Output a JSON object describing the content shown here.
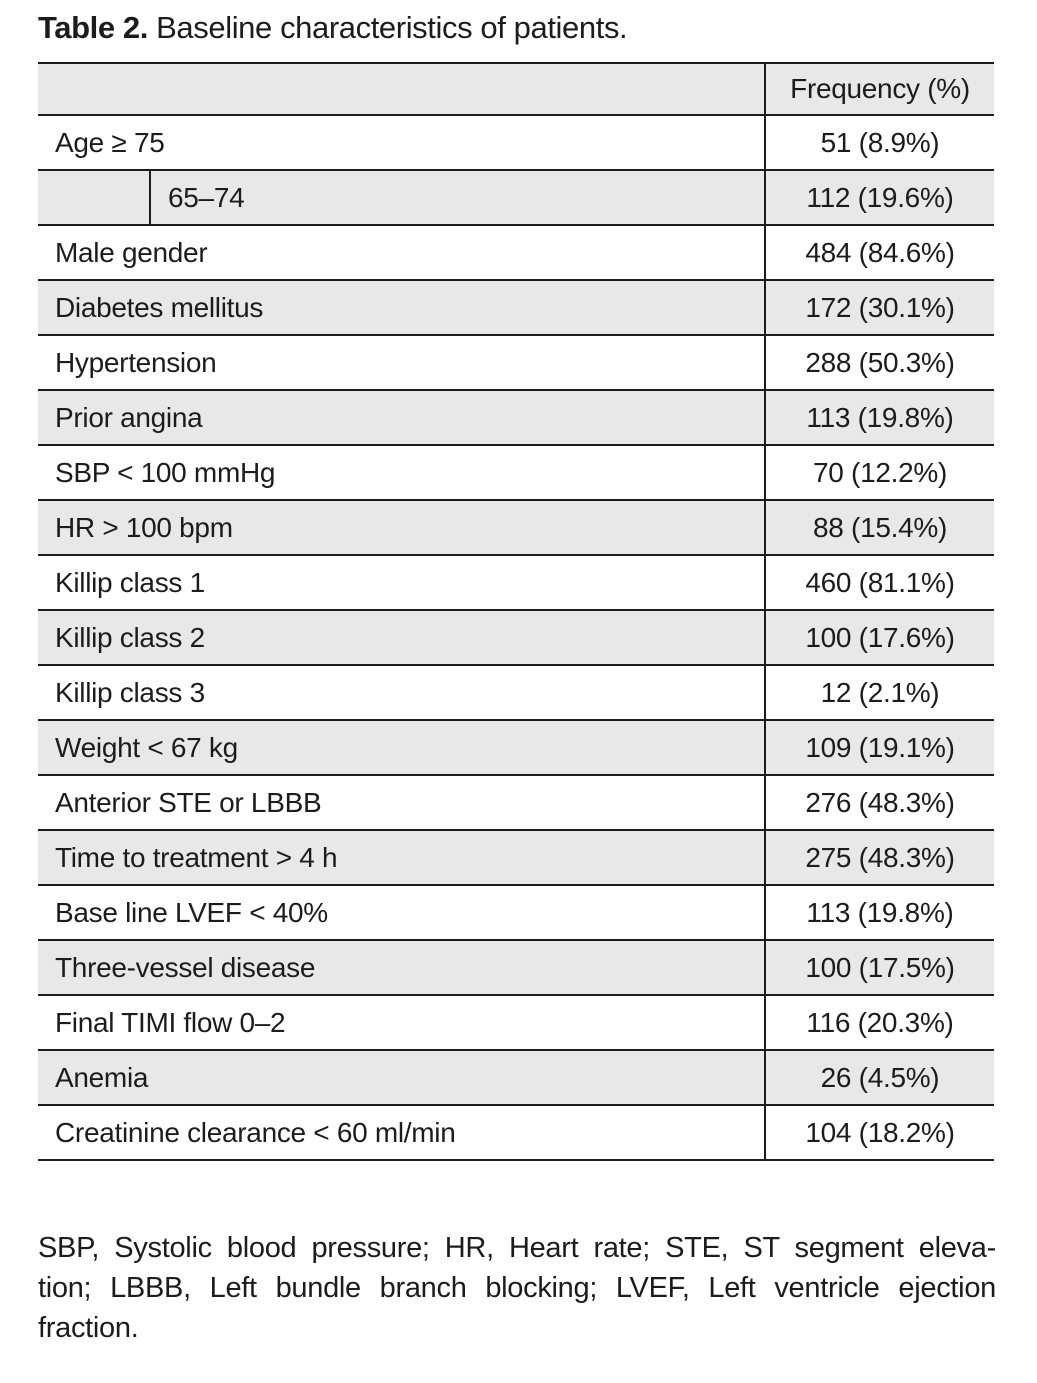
{
  "title": {
    "label": "Table 2.",
    "text": " Baseline characteristics of patients."
  },
  "table": {
    "header": {
      "value": "Frequency (%)"
    },
    "rows": [
      {
        "label": "Age ≥ 75",
        "value": "51 (8.9%)",
        "indent": false
      },
      {
        "label": "65–74",
        "value": "112 (19.6%)",
        "indent": true
      },
      {
        "label": "Male gender",
        "value": "484 (84.6%)",
        "indent": false
      },
      {
        "label": "Diabetes mellitus",
        "value": "172 (30.1%)",
        "indent": false
      },
      {
        "label": "Hypertension",
        "value": "288 (50.3%)",
        "indent": false
      },
      {
        "label": "Prior angina",
        "value": "113 (19.8%)",
        "indent": false
      },
      {
        "label": "SBP < 100 mmHg",
        "value": "70 (12.2%)",
        "indent": false
      },
      {
        "label": "HR > 100 bpm",
        "value": "88 (15.4%)",
        "indent": false
      },
      {
        "label": "Killip class 1",
        "value": "460 (81.1%)",
        "indent": false
      },
      {
        "label": "Killip class 2",
        "value": "100 (17.6%)",
        "indent": false
      },
      {
        "label": "Killip class 3",
        "value": "12 (2.1%)",
        "indent": false
      },
      {
        "label": "Weight < 67 kg",
        "value": "109 (19.1%)",
        "indent": false
      },
      {
        "label": "Anterior STE or LBBB",
        "value": "276 (48.3%)",
        "indent": false
      },
      {
        "label": "Time to treatment > 4 h",
        "value": "275 (48.3%)",
        "indent": false
      },
      {
        "label": "Base line LVEF < 40%",
        "value": "113 (19.8%)",
        "indent": false
      },
      {
        "label": "Three-vessel disease",
        "value": "100 (17.5%)",
        "indent": false
      },
      {
        "label": "Final TIMI flow 0–2",
        "value": "116 (20.3%)",
        "indent": false
      },
      {
        "label": "Anemia",
        "value": "26 (4.5%)",
        "indent": false
      },
      {
        "label": "Creatinine clearance < 60 ml/min",
        "value": "104 (18.2%)",
        "indent": false
      }
    ]
  },
  "footnote": {
    "lines": [
      "SBP, Systolic blood pressure; HR, Heart rate; STE, ST segment eleva-",
      "tion; LBBB, Left bundle branch blocking; LVEF, Left ventricle ejection",
      "fraction."
    ]
  },
  "colors": {
    "row_shade": "#e8e8e8",
    "rule": "#1c1c1c",
    "text": "#1c1c1c"
  }
}
